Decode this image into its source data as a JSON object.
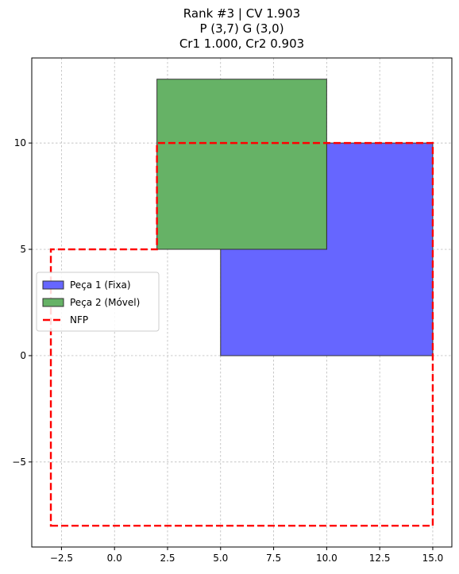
{
  "chart_data": {
    "type": "area",
    "title_lines": [
      "Rank #3 | CV 1.903",
      "P (3,7) G (3,0)",
      "Cr1 1.000, Cr2 0.903"
    ],
    "xlim": [
      -3.9,
      15.9
    ],
    "ylim": [
      -9.0,
      14.0
    ],
    "xticks": [
      -2.5,
      0.0,
      2.5,
      5.0,
      7.5,
      10.0,
      12.5,
      15.0
    ],
    "xtick_labels": [
      "−2.5",
      "0.0",
      "2.5",
      "5.0",
      "7.5",
      "10.0",
      "12.5",
      "15.0"
    ],
    "yticks": [
      -5,
      0,
      5,
      10
    ],
    "ytick_labels": [
      "−5",
      "0",
      "5",
      "10"
    ],
    "grid": true,
    "legend_position": "center-left",
    "series": [
      {
        "name": "Peça 1 (Fixa)",
        "kind": "polygon",
        "color": "#6666ff",
        "points": [
          [
            5,
            0
          ],
          [
            15,
            0
          ],
          [
            15,
            10
          ],
          [
            10,
            10
          ],
          [
            10,
            5
          ],
          [
            5,
            5
          ]
        ]
      },
      {
        "name": "Peça 2 (Móvel)",
        "kind": "polygon",
        "color": "#66b266",
        "points": [
          [
            2,
            5
          ],
          [
            10,
            5
          ],
          [
            10,
            13
          ],
          [
            2,
            13
          ]
        ]
      },
      {
        "name": "NFP",
        "kind": "outline",
        "color": "#ff0000",
        "points": [
          [
            -3,
            -8
          ],
          [
            15,
            -8
          ],
          [
            15,
            10
          ],
          [
            2,
            10
          ],
          [
            2,
            5
          ],
          [
            -3,
            5
          ]
        ]
      }
    ]
  }
}
